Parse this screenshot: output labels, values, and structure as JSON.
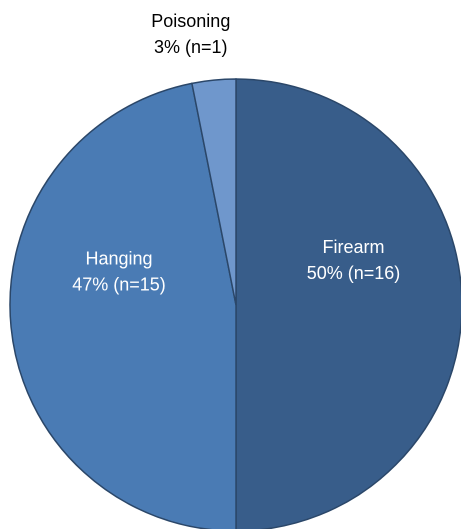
{
  "chart_data": {
    "type": "pie",
    "title": "",
    "start_angle_deg": 0,
    "direction": "clockwise",
    "legend": "none",
    "slices": [
      {
        "category": "Firearm",
        "percent_label": "50% (n=16)",
        "value": 16,
        "color": "#385d8a",
        "label_color": "#ffffff",
        "label_position": "inside"
      },
      {
        "category": "Hanging",
        "percent_label": "47% (n=15)",
        "value": 15,
        "color": "#4a7bb4",
        "label_color": "#ffffff",
        "label_position": "inside"
      },
      {
        "category": "Poisoning",
        "percent_label": "3% (n=1)",
        "value": 1,
        "color": "#6f97cc",
        "label_color": "#000000",
        "label_position": "outside"
      }
    ]
  }
}
